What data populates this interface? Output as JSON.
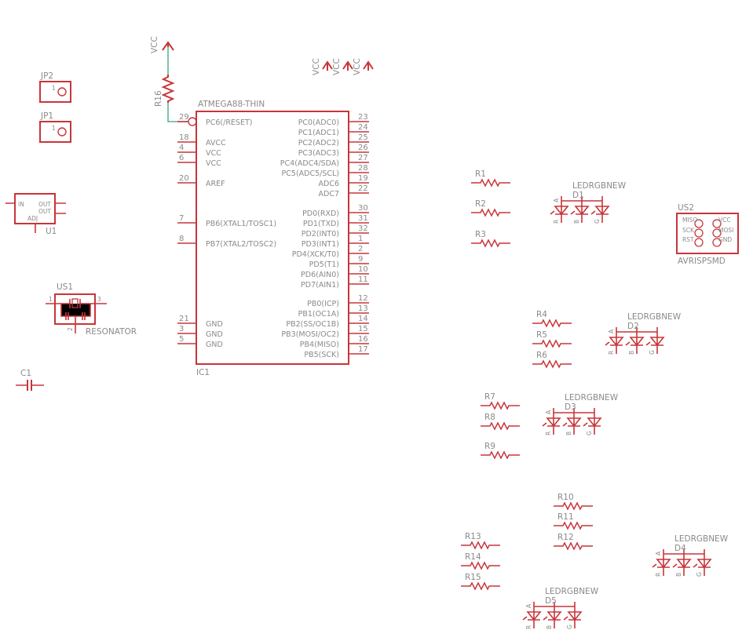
{
  "colors": {
    "symbol": "#c8353a",
    "text": "#8a8a8a",
    "wire": "#3aa57a",
    "background": "#ffffff"
  },
  "supply": {
    "label": "VCC"
  },
  "r16": {
    "name": "R16"
  },
  "ic1": {
    "name": "IC1",
    "value": "ATMEGA88-THIN",
    "left_pins": [
      {
        "num": "29",
        "name": "PC6(/RESET)"
      },
      {
        "num": "18",
        "name": "AVCC"
      },
      {
        "num": "4",
        "name": "VCC"
      },
      {
        "num": "6",
        "name": "VCC"
      },
      {
        "num": "20",
        "name": "AREF"
      },
      {
        "num": "7",
        "name": "PB6(XTAL1/TOSC1)"
      },
      {
        "num": "8",
        "name": "PB7(XTAL2/TOSC2)"
      },
      {
        "num": "21",
        "name": "GND"
      },
      {
        "num": "3",
        "name": "GND"
      },
      {
        "num": "5",
        "name": "GND"
      }
    ],
    "right_pins": [
      {
        "num": "23",
        "name": "PC0(ADC0)"
      },
      {
        "num": "24",
        "name": "PC1(ADC1)"
      },
      {
        "num": "25",
        "name": "PC2(ADC2)"
      },
      {
        "num": "26",
        "name": "PC3(ADC3)"
      },
      {
        "num": "27",
        "name": "PC4(ADC4/SDA)"
      },
      {
        "num": "28",
        "name": "PC5(ADC5/SCL)"
      },
      {
        "num": "19",
        "name": "ADC6"
      },
      {
        "num": "22",
        "name": "ADC7"
      },
      {
        "num": "30",
        "name": "PD0(RXD)"
      },
      {
        "num": "31",
        "name": "PD1(TXD)"
      },
      {
        "num": "32",
        "name": "PD2(INT0)"
      },
      {
        "num": "1",
        "name": "PD3(INT1)"
      },
      {
        "num": "2",
        "name": "PD4(XCK/T0)"
      },
      {
        "num": "9",
        "name": "PD5(T1)"
      },
      {
        "num": "10",
        "name": "PD6(AIN0)"
      },
      {
        "num": "11",
        "name": "PD7(AIN1)"
      },
      {
        "num": "12",
        "name": "PB0(ICP)"
      },
      {
        "num": "13",
        "name": "PB1(OC1A)"
      },
      {
        "num": "14",
        "name": "PB2(SS/OC1B)"
      },
      {
        "num": "15",
        "name": "PB3(MOSI/OC2)"
      },
      {
        "num": "16",
        "name": "PB4(MISO)"
      },
      {
        "num": "17",
        "name": "PB5(SCK)"
      }
    ]
  },
  "jp2": {
    "name": "JP2",
    "pin": "1"
  },
  "jp1": {
    "name": "JP1",
    "pin": "1"
  },
  "u1": {
    "name": "U1",
    "in": "IN",
    "out1": "OUT",
    "out2": "OUT",
    "adj": "ADJ"
  },
  "us1": {
    "name": "US1",
    "value": "RESONATOR",
    "pin1": "1",
    "pin2": "2",
    "pin3": "3"
  },
  "c1": {
    "name": "C1"
  },
  "us2": {
    "name": "US2",
    "value": "AVRISPSMD",
    "pins": [
      "MISO",
      "SCK",
      "RST",
      "VCC",
      "MOSI",
      "GND"
    ]
  },
  "resistors": [
    "R1",
    "R2",
    "R3",
    "R4",
    "R5",
    "R6",
    "R7",
    "R8",
    "R9",
    "R10",
    "R11",
    "R12",
    "R13",
    "R14",
    "R15"
  ],
  "leds": [
    {
      "name": "D1",
      "value": "LEDRGBNEW"
    },
    {
      "name": "D2",
      "value": "LEDRGBNEW"
    },
    {
      "name": "D3",
      "value": "LEDRGBNEW"
    },
    {
      "name": "D4",
      "value": "LEDRGBNEW"
    },
    {
      "name": "D5",
      "value": "LEDRGBNEW"
    }
  ],
  "led_labels": {
    "anode": "A",
    "red": "R",
    "blue": "B",
    "green": "G"
  }
}
